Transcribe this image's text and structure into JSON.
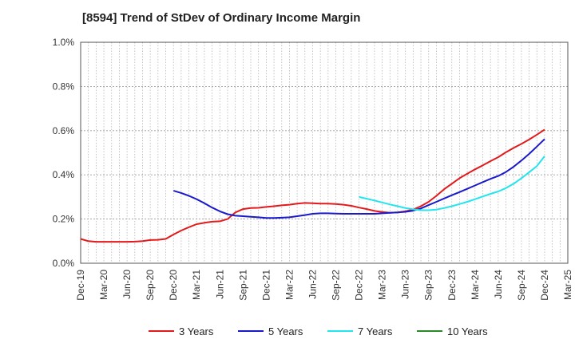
{
  "chart_data": {
    "type": "line",
    "title": "[8594]  Trend of StDev of Ordinary Income Margin",
    "xlabel": "",
    "ylabel": "",
    "categories": [
      "Dec-19",
      "Mar-20",
      "Jun-20",
      "Sep-20",
      "Dec-20",
      "Mar-21",
      "Jun-21",
      "Sep-21",
      "Dec-21",
      "Mar-22",
      "Jun-22",
      "Sep-22",
      "Dec-22",
      "Mar-23",
      "Jun-23",
      "Sep-23",
      "Dec-23",
      "Mar-24",
      "Jun-24",
      "Sep-24",
      "Dec-24",
      "Mar-25"
    ],
    "x_start": "2019-12",
    "x_end": "2025-03",
    "y_ticks": [
      "0.0%",
      "0.2%",
      "0.4%",
      "0.6%",
      "0.8%",
      "1.0%"
    ],
    "ylim": [
      0,
      1.0
    ],
    "grid": true,
    "legend_position": "bottom",
    "series": [
      {
        "name": "3 Years",
        "color": "#e31a1c",
        "points": [
          [
            "2019-12",
            0.11
          ],
          [
            "2020-01",
            0.1
          ],
          [
            "2020-02",
            0.097
          ],
          [
            "2020-03",
            0.097
          ],
          [
            "2020-04",
            0.097
          ],
          [
            "2020-05",
            0.097
          ],
          [
            "2020-06",
            0.097
          ],
          [
            "2020-07",
            0.098
          ],
          [
            "2020-08",
            0.1
          ],
          [
            "2020-09",
            0.105
          ],
          [
            "2020-10",
            0.106
          ],
          [
            "2020-11",
            0.11
          ],
          [
            "2020-12",
            0.13
          ],
          [
            "2021-01",
            0.148
          ],
          [
            "2021-02",
            0.163
          ],
          [
            "2021-03",
            0.177
          ],
          [
            "2021-04",
            0.183
          ],
          [
            "2021-05",
            0.188
          ],
          [
            "2021-06",
            0.19
          ],
          [
            "2021-07",
            0.2
          ],
          [
            "2021-08",
            0.23
          ],
          [
            "2021-09",
            0.245
          ],
          [
            "2021-10",
            0.25
          ],
          [
            "2021-11",
            0.251
          ],
          [
            "2021-12",
            0.255
          ],
          [
            "2022-01",
            0.258
          ],
          [
            "2022-02",
            0.262
          ],
          [
            "2022-03",
            0.265
          ],
          [
            "2022-04",
            0.27
          ],
          [
            "2022-05",
            0.273
          ],
          [
            "2022-06",
            0.272
          ],
          [
            "2022-07",
            0.27
          ],
          [
            "2022-08",
            0.27
          ],
          [
            "2022-09",
            0.268
          ],
          [
            "2022-10",
            0.265
          ],
          [
            "2022-11",
            0.26
          ],
          [
            "2022-12",
            0.252
          ],
          [
            "2023-01",
            0.245
          ],
          [
            "2023-02",
            0.237
          ],
          [
            "2023-03",
            0.232
          ],
          [
            "2023-04",
            0.228
          ],
          [
            "2023-05",
            0.23
          ],
          [
            "2023-06",
            0.235
          ],
          [
            "2023-07",
            0.243
          ],
          [
            "2023-08",
            0.258
          ],
          [
            "2023-09",
            0.278
          ],
          [
            "2023-10",
            0.305
          ],
          [
            "2023-11",
            0.335
          ],
          [
            "2023-12",
            0.36
          ],
          [
            "2024-01",
            0.385
          ],
          [
            "2024-02",
            0.405
          ],
          [
            "2024-03",
            0.425
          ],
          [
            "2024-04",
            0.443
          ],
          [
            "2024-05",
            0.462
          ],
          [
            "2024-06",
            0.48
          ],
          [
            "2024-07",
            0.502
          ],
          [
            "2024-08",
            0.522
          ],
          [
            "2024-09",
            0.54
          ],
          [
            "2024-10",
            0.56
          ],
          [
            "2024-11",
            0.582
          ],
          [
            "2024-12",
            0.605
          ]
        ]
      },
      {
        "name": "5 Years",
        "color": "#1a1acc",
        "points": [
          [
            "2020-12",
            0.328
          ],
          [
            "2021-01",
            0.318
          ],
          [
            "2021-02",
            0.305
          ],
          [
            "2021-03",
            0.29
          ],
          [
            "2021-04",
            0.272
          ],
          [
            "2021-05",
            0.252
          ],
          [
            "2021-06",
            0.235
          ],
          [
            "2021-07",
            0.222
          ],
          [
            "2021-08",
            0.215
          ],
          [
            "2021-09",
            0.213
          ],
          [
            "2021-10",
            0.21
          ],
          [
            "2021-11",
            0.208
          ],
          [
            "2021-12",
            0.205
          ],
          [
            "2022-01",
            0.205
          ],
          [
            "2022-02",
            0.206
          ],
          [
            "2022-03",
            0.208
          ],
          [
            "2022-04",
            0.213
          ],
          [
            "2022-05",
            0.218
          ],
          [
            "2022-06",
            0.224
          ],
          [
            "2022-07",
            0.226
          ],
          [
            "2022-08",
            0.226
          ],
          [
            "2022-09",
            0.225
          ],
          [
            "2022-10",
            0.224
          ],
          [
            "2022-11",
            0.224
          ],
          [
            "2022-12",
            0.224
          ],
          [
            "2023-01",
            0.224
          ],
          [
            "2023-02",
            0.224
          ],
          [
            "2023-03",
            0.226
          ],
          [
            "2023-04",
            0.228
          ],
          [
            "2023-05",
            0.23
          ],
          [
            "2023-06",
            0.233
          ],
          [
            "2023-07",
            0.238
          ],
          [
            "2023-08",
            0.248
          ],
          [
            "2023-09",
            0.263
          ],
          [
            "2023-10",
            0.278
          ],
          [
            "2023-11",
            0.293
          ],
          [
            "2023-12",
            0.308
          ],
          [
            "2024-01",
            0.322
          ],
          [
            "2024-02",
            0.337
          ],
          [
            "2024-03",
            0.352
          ],
          [
            "2024-04",
            0.367
          ],
          [
            "2024-05",
            0.382
          ],
          [
            "2024-06",
            0.395
          ],
          [
            "2024-07",
            0.413
          ],
          [
            "2024-08",
            0.437
          ],
          [
            "2024-09",
            0.465
          ],
          [
            "2024-10",
            0.495
          ],
          [
            "2024-11",
            0.528
          ],
          [
            "2024-12",
            0.562
          ]
        ]
      },
      {
        "name": "7 Years",
        "color": "#22e5ee",
        "points": [
          [
            "2022-12",
            0.3
          ],
          [
            "2023-01",
            0.292
          ],
          [
            "2023-02",
            0.284
          ],
          [
            "2023-03",
            0.275
          ],
          [
            "2023-04",
            0.266
          ],
          [
            "2023-05",
            0.258
          ],
          [
            "2023-06",
            0.25
          ],
          [
            "2023-07",
            0.244
          ],
          [
            "2023-08",
            0.24
          ],
          [
            "2023-09",
            0.24
          ],
          [
            "2023-10",
            0.243
          ],
          [
            "2023-11",
            0.25
          ],
          [
            "2023-12",
            0.258
          ],
          [
            "2024-01",
            0.268
          ],
          [
            "2024-02",
            0.278
          ],
          [
            "2024-03",
            0.29
          ],
          [
            "2024-04",
            0.302
          ],
          [
            "2024-05",
            0.314
          ],
          [
            "2024-06",
            0.325
          ],
          [
            "2024-07",
            0.34
          ],
          [
            "2024-08",
            0.36
          ],
          [
            "2024-09",
            0.385
          ],
          [
            "2024-10",
            0.412
          ],
          [
            "2024-11",
            0.44
          ],
          [
            "2024-12",
            0.485
          ]
        ]
      },
      {
        "name": "10 Years",
        "color": "#2a8a2a",
        "points": []
      }
    ]
  }
}
